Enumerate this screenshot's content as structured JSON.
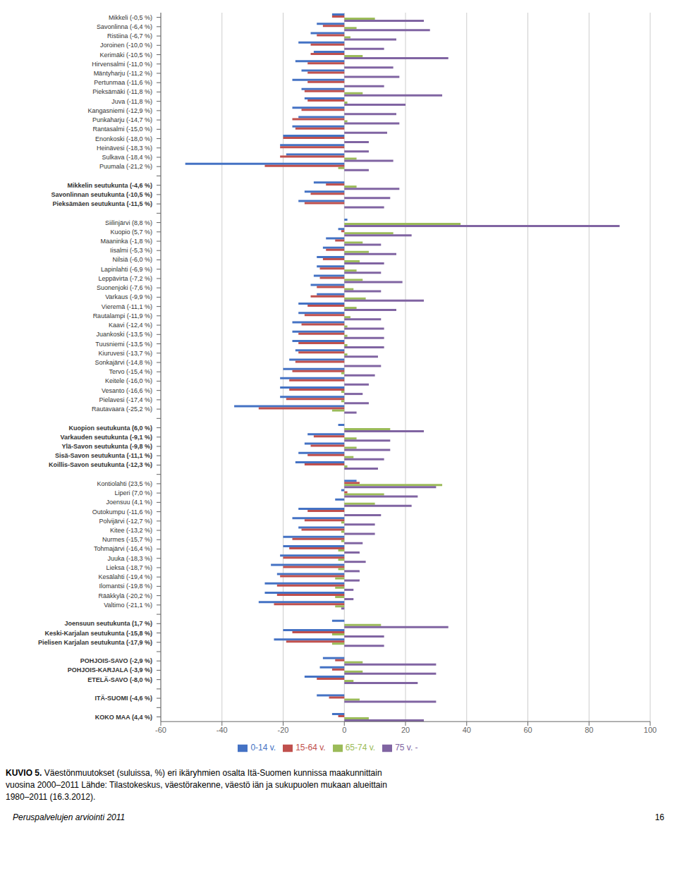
{
  "chart_data": {
    "type": "bar",
    "orientation": "horizontal",
    "title": "KUVIO 5.",
    "subtitle": "Väestönmuutokset (suluissa, %) eri ikäryhmien osalta Itä-Suomen kunnissa maakunnittain\nvuosina 2000–2011 Lähde: Tilastokeskus, väestörakenne, väestö iän ja sukupuolen mukaan alueittain\n1980–2011 (16.3.2012).",
    "annotations": [
      "Peruspalvelujen arviointi 2011",
      "16"
    ],
    "categories": [
      "Mikkeli (-0,5 %)",
      "Savonlinna (-6,4 %)",
      "Ristiina (-6,7 %)",
      "Joroinen (-10,0 %)",
      "Kerimäki (-10,5 %)",
      "Hirvensalmi (-11,0 %)",
      "Mäntyharju (-11,2 %)",
      "Pertunmaa (-11,6 %)",
      "Pieksämäki (-11,8 %)",
      "Juva (-11,8 %)",
      "Kangasniemi (-12,9 %)",
      "Punkaharju (-14,7 %)",
      "Rantasalmi (-15,0 %)",
      "Enonkoski (-18,0 %)",
      "Heinävesi (-18,3 %)",
      "Sulkava (-18,4 %)",
      "Puumala (-21,2 %)",
      null,
      "Mikkelin seutukunta (-4,6 %)",
      "Savonlinnan seutukunta (-10,5 %)",
      "Pieksämäen seutukunta (-11,5 %)",
      null,
      "Siilinjärvi (8,8 %)",
      "Kuopio (5,7 %)",
      "Maaninka (-1,8 %)",
      "Iisalmi (-5,3 %)",
      "Nilsiä (-6,0 %)",
      "Lapinlahti (-6,9 %)",
      "Leppävirta (-7,2 %)",
      "Suonenjoki (-7,6 %)",
      "Varkaus (-9,9 %)",
      "Vieremä (-11,1 %)",
      "Rautalampi (-11,9 %)",
      "Kaavi (-12,4 %)",
      "Juankoski (-13,5 %)",
      "Tuusniemi (-13,5 %)",
      "Kiuruvesi (-13,7 %)",
      "Sonkajärvi (-14,8 %)",
      "Tervo (-15,4 %)",
      "Keitele (-16,0 %)",
      "Vesanto (-16,6 %)",
      "Pielavesi (-17,4 %)",
      "Rautavaara (-25,2 %)",
      null,
      "Kuopion seutukunta (6,0 %)",
      "Varkauden seutukunta (-9,1 %)",
      "Ylä-Savon seutukunta (-9,8 %)",
      "Sisä-Savon seutukunta (-11,1 %)",
      "Koillis-Savon seutukunta (-12,3 %)",
      null,
      "Kontiolahti (23,5 %)",
      "Liperi (7,0 %)",
      "Joensuu (4,1 %)",
      "Outokumpu (-11,6 %)",
      "Polvijärvi (-12,7 %)",
      "Kitee (-13,2 %)",
      "Nurmes (-15,7 %)",
      "Tohmajärvi (-16,4 %)",
      "Juuka (-18,3 %)",
      "Lieksa (-18,7 %)",
      "Kesälahti (-19,4 %)",
      "Ilomantsi (-19,8 %)",
      "Rääkkylä (-20,2 %)",
      "Valtimo (-21,1 %)",
      null,
      "Joensuun seutukunta (1,7 %)",
      "Keski-Karjalan seutukunta (-15,8 %)",
      "Pielisen Karjalan seutukunta (-17,9 %)",
      null,
      "POHJOIS-SAVO (-2,9 %)",
      "POHJOIS-KARJALA (-3,9 %)",
      "ETELÄ-SAVO (-8,0 %)",
      null,
      "ITÄ-SUOMI (-4,6 %)",
      null,
      "KOKO MAA (4,4 %)"
    ],
    "series": [
      {
        "name": "0-14 v.",
        "color": "#4472C4",
        "values": [
          -4,
          -9,
          -11,
          -15,
          -10,
          -16,
          -14,
          -17,
          -14,
          -13,
          -17,
          -15,
          -17,
          -20,
          -21,
          -19,
          -52,
          null,
          -10,
          -13,
          -15,
          null,
          1,
          -2,
          -6,
          -7,
          -9,
          -9,
          -10,
          -11,
          -9,
          -15,
          -15,
          -17,
          -17,
          -17,
          -16,
          -18,
          -20,
          -21,
          -21,
          -21,
          -36,
          null,
          -2,
          -12,
          -13,
          -15,
          -16,
          null,
          4,
          -1,
          -3,
          -15,
          -17,
          -15,
          -20,
          -20,
          -21,
          -24,
          -22,
          -26,
          -26,
          -28,
          null,
          -4,
          -20,
          -23,
          null,
          -7,
          -8,
          -13,
          null,
          -9,
          null,
          -4
        ]
      },
      {
        "name": "15-64 v.",
        "color": "#C0504D",
        "values": [
          -4,
          -7,
          -9,
          -11,
          -11,
          -12,
          -12,
          -12,
          -13,
          -12,
          -14,
          -17,
          -16,
          -20,
          -21,
          -21,
          -26,
          null,
          -6,
          -11,
          -13,
          null,
          0,
          -1,
          -3,
          -6,
          -7,
          -8,
          -8,
          -9,
          -11,
          -12,
          -13,
          -14,
          -15,
          -15,
          -15,
          -16,
          -17,
          -18,
          -18,
          -19,
          -28,
          null,
          0,
          -10,
          -11,
          -12,
          -13,
          null,
          5,
          1,
          0,
          -12,
          -13,
          -14,
          -17,
          -18,
          -20,
          -20,
          -21,
          -22,
          -22,
          -23,
          null,
          0,
          -17,
          -19,
          null,
          -3,
          -4,
          -9,
          null,
          -5,
          null,
          -2
        ]
      },
      {
        "name": "65-74 v.",
        "color": "#9BBB59",
        "values": [
          10,
          4,
          2,
          0,
          6,
          0,
          0,
          0,
          6,
          1,
          0,
          1,
          0,
          0,
          0,
          4,
          -2,
          null,
          4,
          0,
          0,
          null,
          38,
          16,
          6,
          8,
          5,
          4,
          6,
          3,
          7,
          4,
          2,
          1,
          1,
          1,
          1,
          0,
          -1,
          0,
          -1,
          -1,
          -4,
          null,
          15,
          4,
          4,
          3,
          1,
          null,
          32,
          13,
          10,
          0,
          -1,
          -1,
          -1,
          -2,
          -2,
          -2,
          -3,
          -3,
          -3,
          -3,
          null,
          12,
          -4,
          -4,
          null,
          6,
          6,
          3,
          null,
          5,
          null,
          8
        ]
      },
      {
        "name": "75 v. -",
        "color": "#8064A2",
        "values": [
          26,
          28,
          17,
          13,
          34,
          16,
          18,
          13,
          32,
          20,
          17,
          18,
          14,
          8,
          8,
          16,
          8,
          null,
          18,
          15,
          13,
          null,
          90,
          22,
          12,
          17,
          13,
          12,
          19,
          12,
          26,
          17,
          12,
          13,
          13,
          13,
          11,
          12,
          10,
          8,
          6,
          8,
          4,
          null,
          26,
          15,
          15,
          13,
          11,
          null,
          30,
          24,
          22,
          12,
          10,
          10,
          6,
          5,
          7,
          5,
          5,
          3,
          3,
          -1,
          null,
          34,
          13,
          13,
          null,
          30,
          30,
          24,
          null,
          30,
          null,
          26
        ]
      }
    ],
    "xlim": [
      -60,
      100
    ],
    "xticks": [
      -60,
      -40,
      -20,
      0,
      20,
      40,
      60,
      80,
      100
    ],
    "grid": true,
    "legend": "bottom"
  }
}
